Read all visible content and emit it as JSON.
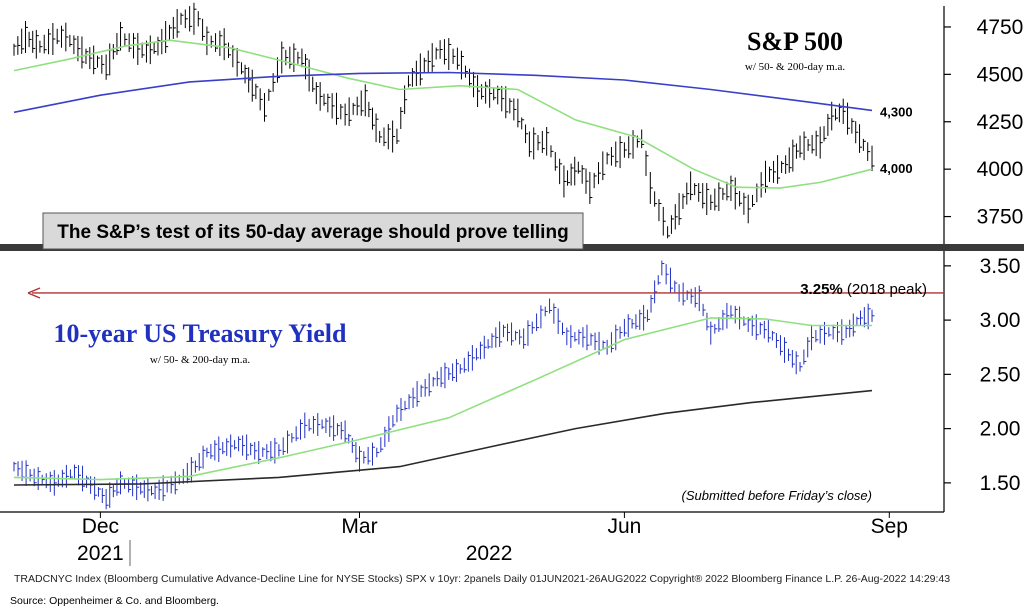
{
  "chart_data": [
    {
      "type": "line",
      "title": "S&P 500",
      "subtitle": "w/ 50- & 200-day m.a.",
      "ylim": [
        3600,
        4850
      ],
      "yticks": [
        3750,
        4000,
        4250,
        4500,
        4750
      ],
      "callout": "The S&P’s test of its 50-day average should prove telling",
      "series": [
        {
          "name": "",
          "kind": "daily-bars",
          "color": "#000000",
          "points": [
            [
              "2021-11-01",
              4630
            ],
            [
              "2021-11-05",
              4697
            ],
            [
              "2021-11-10",
              4646
            ],
            [
              "2021-11-16",
              4700
            ],
            [
              "2021-11-19",
              4697
            ],
            [
              "2021-11-26",
              4595
            ],
            [
              "2021-11-30",
              4567
            ],
            [
              "2021-12-03",
              4538
            ],
            [
              "2021-12-08",
              4701
            ],
            [
              "2021-12-14",
              4634
            ],
            [
              "2021-12-17",
              4620
            ],
            [
              "2021-12-21",
              4649
            ],
            [
              "2021-12-29",
              4793
            ],
            [
              "2022-01-04",
              4793
            ],
            [
              "2022-01-07",
              4677
            ],
            [
              "2022-01-13",
              4659
            ],
            [
              "2022-01-19",
              4532
            ],
            [
              "2022-01-24",
              4410
            ],
            [
              "2022-01-27",
              4326
            ],
            [
              "2022-02-02",
              4589
            ],
            [
              "2022-02-09",
              4587
            ],
            [
              "2022-02-14",
              4401
            ],
            [
              "2022-02-18",
              4349
            ],
            [
              "2022-02-24",
              4288
            ],
            [
              "2022-03-03",
              4363
            ],
            [
              "2022-03-08",
              4170
            ],
            [
              "2022-03-14",
              4173
            ],
            [
              "2022-03-18",
              4463
            ],
            [
              "2022-03-29",
              4631
            ],
            [
              "2022-04-04",
              4583
            ],
            [
              "2022-04-11",
              4412
            ],
            [
              "2022-04-18",
              4391
            ],
            [
              "2022-04-25",
              4296
            ],
            [
              "2022-04-29",
              4132
            ],
            [
              "2022-05-05",
              4147
            ],
            [
              "2022-05-11",
              3935
            ],
            [
              "2022-05-16",
              4008
            ],
            [
              "2022-05-20",
              3901
            ],
            [
              "2022-05-26",
              4057
            ],
            [
              "2022-06-01",
              4101
            ],
            [
              "2022-06-07",
              4160
            ],
            [
              "2022-06-10",
              3901
            ],
            [
              "2022-06-16",
              3667
            ],
            [
              "2022-06-24",
              3912
            ],
            [
              "2022-07-01",
              3825
            ],
            [
              "2022-07-08",
              3899
            ],
            [
              "2022-07-14",
              3790
            ],
            [
              "2022-07-20",
              3960
            ],
            [
              "2022-07-27",
              4024
            ],
            [
              "2022-08-01",
              4119
            ],
            [
              "2022-08-08",
              4140
            ],
            [
              "2022-08-12",
              4280
            ],
            [
              "2022-08-16",
              4305
            ],
            [
              "2022-08-19",
              4228
            ],
            [
              "2022-08-23",
              4128
            ],
            [
              "2022-08-26",
              4057
            ]
          ]
        },
        {
          "name": "",
          "kind": "50-day m.a.",
          "color": "#8fe07f",
          "points": [
            [
              "2021-11-01",
              4520
            ],
            [
              "2021-11-20",
              4580
            ],
            [
              "2021-12-10",
              4650
            ],
            [
              "2021-12-25",
              4680
            ],
            [
              "2022-01-15",
              4640
            ],
            [
              "2022-02-05",
              4560
            ],
            [
              "2022-02-25",
              4480
            ],
            [
              "2022-03-15",
              4420
            ],
            [
              "2022-04-05",
              4440
            ],
            [
              "2022-04-25",
              4420
            ],
            [
              "2022-05-15",
              4260
            ],
            [
              "2022-06-05",
              4170
            ],
            [
              "2022-06-25",
              4000
            ],
            [
              "2022-07-10",
              3905
            ],
            [
              "2022-07-25",
              3900
            ],
            [
              "2022-08-08",
              3930
            ],
            [
              "2022-08-26",
              4000
            ]
          ]
        },
        {
          "name": "",
          "kind": "200-day m.a.",
          "color": "#3a3fc8",
          "points": [
            [
              "2021-11-01",
              4300
            ],
            [
              "2021-12-01",
              4390
            ],
            [
              "2022-01-01",
              4460
            ],
            [
              "2022-02-01",
              4490
            ],
            [
              "2022-03-01",
              4505
            ],
            [
              "2022-04-01",
              4510
            ],
            [
              "2022-05-01",
              4495
            ],
            [
              "2022-06-01",
              4470
            ],
            [
              "2022-07-01",
              4420
            ],
            [
              "2022-08-01",
              4360
            ],
            [
              "2022-08-26",
              4310
            ]
          ]
        }
      ],
      "annotations": [
        {
          "text": "4,300",
          "x": "2022-08-26",
          "y": 4300
        },
        {
          "text": "4,000",
          "x": "2022-08-26",
          "y": 4000
        }
      ]
    },
    {
      "type": "line",
      "title": "10-year US Treasury Yield",
      "subtitle": "w/ 50- & 200-day m.a.",
      "ylim": [
        1.25,
        3.6
      ],
      "yticks": [
        "1.50",
        "2.00",
        "2.50",
        "3.00",
        "3.50"
      ],
      "reference_line": {
        "y": 3.25,
        "label_bold": "3.25%",
        "label": " (2018 peak)",
        "color": "#b03030"
      },
      "note": "(Submitted before Friday’s close)",
      "series": [
        {
          "name": "",
          "kind": "daily-bars",
          "color": "#2030c0",
          "points": [
            [
              "2021-11-01",
              1.65
            ],
            [
              "2021-11-08",
              1.55
            ],
            [
              "2021-11-15",
              1.5
            ],
            [
              "2021-11-22",
              1.6
            ],
            [
              "2021-11-29",
              1.45
            ],
            [
              "2021-12-03",
              1.35
            ],
            [
              "2021-12-08",
              1.5
            ],
            [
              "2021-12-15",
              1.45
            ],
            [
              "2021-12-20",
              1.42
            ],
            [
              "2021-12-27",
              1.5
            ],
            [
              "2022-01-03",
              1.65
            ],
            [
              "2022-01-07",
              1.78
            ],
            [
              "2022-01-18",
              1.86
            ],
            [
              "2022-01-25",
              1.78
            ],
            [
              "2022-02-01",
              1.8
            ],
            [
              "2022-02-10",
              2.03
            ],
            [
              "2022-02-16",
              2.04
            ],
            [
              "2022-02-24",
              1.97
            ],
            [
              "2022-03-01",
              1.72
            ],
            [
              "2022-03-07",
              1.78
            ],
            [
              "2022-03-14",
              2.14
            ],
            [
              "2022-03-21",
              2.32
            ],
            [
              "2022-03-28",
              2.46
            ],
            [
              "2022-04-05",
              2.55
            ],
            [
              "2022-04-12",
              2.72
            ],
            [
              "2022-04-20",
              2.9
            ],
            [
              "2022-04-27",
              2.83
            ],
            [
              "2022-05-06",
              3.13
            ],
            [
              "2022-05-12",
              2.85
            ],
            [
              "2022-05-19",
              2.84
            ],
            [
              "2022-05-26",
              2.75
            ],
            [
              "2022-06-01",
              2.93
            ],
            [
              "2022-06-09",
              3.04
            ],
            [
              "2022-06-14",
              3.48
            ],
            [
              "2022-06-20",
              3.25
            ],
            [
              "2022-06-27",
              3.2
            ],
            [
              "2022-07-01",
              2.88
            ],
            [
              "2022-07-08",
              3.08
            ],
            [
              "2022-07-14",
              2.96
            ],
            [
              "2022-07-21",
              2.9
            ],
            [
              "2022-07-28",
              2.68
            ],
            [
              "2022-08-01",
              2.57
            ],
            [
              "2022-08-05",
              2.84
            ],
            [
              "2022-08-11",
              2.89
            ],
            [
              "2022-08-17",
              2.89
            ],
            [
              "2022-08-22",
              3.02
            ],
            [
              "2022-08-26",
              3.04
            ]
          ]
        },
        {
          "name": "",
          "kind": "50-day m.a.",
          "color": "#8fe07f",
          "points": [
            [
              "2021-11-01",
              1.55
            ],
            [
              "2021-12-01",
              1.53
            ],
            [
              "2022-01-01",
              1.56
            ],
            [
              "2022-02-01",
              1.73
            ],
            [
              "2022-03-01",
              1.9
            ],
            [
              "2022-04-01",
              2.1
            ],
            [
              "2022-05-01",
              2.45
            ],
            [
              "2022-06-01",
              2.82
            ],
            [
              "2022-07-01",
              3.02
            ],
            [
              "2022-07-20",
              3.01
            ],
            [
              "2022-08-05",
              2.95
            ],
            [
              "2022-08-26",
              2.95
            ]
          ]
        },
        {
          "name": "",
          "kind": "200-day m.a.",
          "color": "#2a2a2a",
          "points": [
            [
              "2021-11-01",
              1.48
            ],
            [
              "2021-12-15",
              1.49
            ],
            [
              "2022-02-01",
              1.55
            ],
            [
              "2022-03-15",
              1.65
            ],
            [
              "2022-04-15",
              1.83
            ],
            [
              "2022-05-15",
              2.0
            ],
            [
              "2022-06-15",
              2.14
            ],
            [
              "2022-07-15",
              2.24
            ],
            [
              "2022-08-26",
              2.35
            ]
          ]
        }
      ]
    }
  ],
  "x_axis": {
    "range": [
      "2021-11-01",
      "2022-09-20"
    ],
    "month_labels": [
      {
        "date": "2021-12-01",
        "label": "Dec"
      },
      {
        "date": "2022-03-01",
        "label": "Mar"
      },
      {
        "date": "2022-06-01",
        "label": "Jun"
      },
      {
        "date": "2022-09-01",
        "label": "Sep"
      }
    ],
    "year_labels": [
      {
        "date": "2021-12-01",
        "label": "2021"
      },
      {
        "date": "2022-04-15",
        "label": "2022"
      }
    ]
  },
  "info_line": "TRADCNYC Index (Bloomberg Cumulative Advance-Decline Line for NYSE Stocks) SPX v 10yr: 2panels  Daily 01JUN2021-26AUG2022   Copyright® 2022 Bloomberg Finance L.P.    26-Aug-2022 14:29:43",
  "source": "Source:  Oppenheimer & Co. and Bloomberg."
}
